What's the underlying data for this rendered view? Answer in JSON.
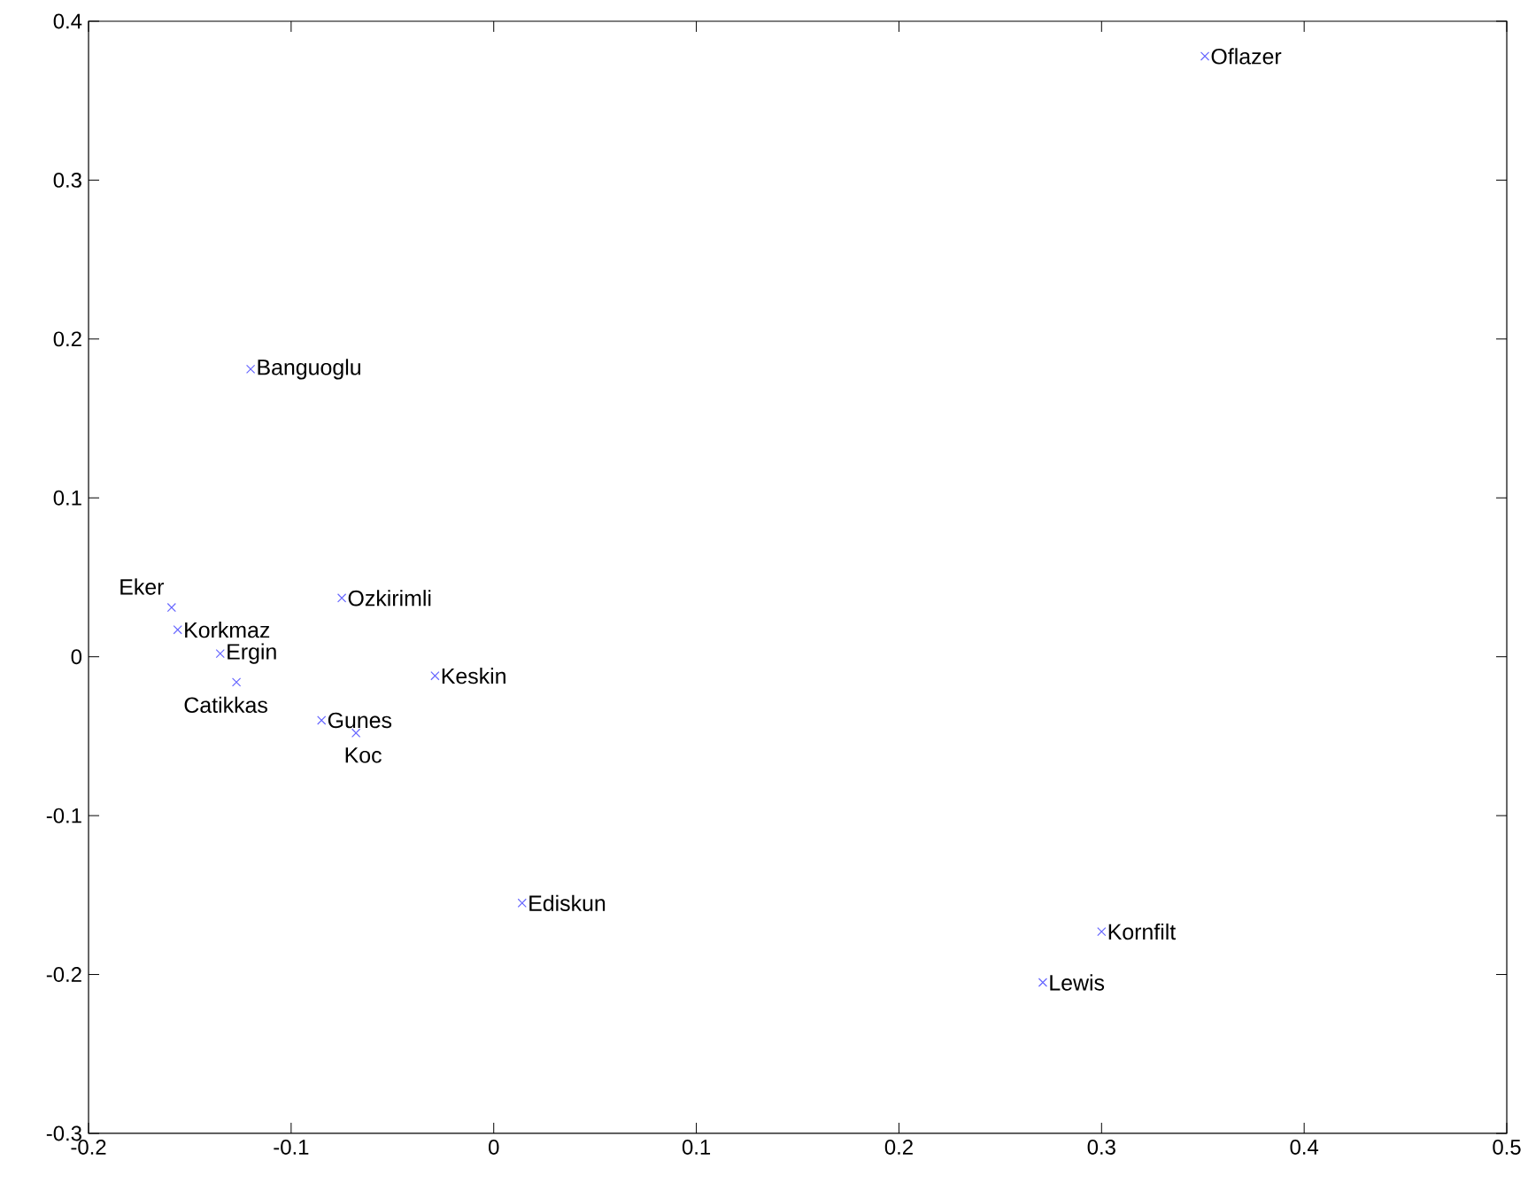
{
  "chart_data": {
    "type": "scatter",
    "marker": "cross",
    "grid": false,
    "x": [
      0.351,
      -0.12,
      -0.159,
      -0.156,
      -0.135,
      -0.127,
      -0.075,
      -0.029,
      -0.085,
      -0.068,
      0.014,
      0.3,
      0.271
    ],
    "series": [
      {
        "color": "#6666ff",
        "values": [
          0.378,
          0.181,
          0.031,
          0.017,
          0.002,
          -0.016,
          0.037,
          -0.012,
          -0.04,
          -0.048,
          -0.155,
          -0.173,
          -0.205
        ]
      }
    ],
    "xlim": [
      -0.2,
      0.5
    ],
    "xticks": [
      -0.2,
      -0.1,
      0,
      0.1,
      0.2,
      0.3,
      0.4,
      0.5
    ],
    "ylim": [
      -0.3,
      0.4
    ],
    "yticks": [
      -0.3,
      -0.2,
      -0.1,
      0,
      0.1,
      0.2,
      0.3,
      0.4
    ],
    "annotations": [
      {
        "text": "Oflazer",
        "x": 0.351,
        "y": 0.378
      },
      {
        "text": "Banguoglu",
        "x": -0.12,
        "y": 0.181
      },
      {
        "text": "Eker",
        "x": -0.159,
        "y": 0.031
      },
      {
        "text": "Korkmaz",
        "x": -0.156,
        "y": 0.017
      },
      {
        "text": "Ergin",
        "x": -0.135,
        "y": 0.002
      },
      {
        "text": "Catikkas",
        "x": -0.127,
        "y": -0.016
      },
      {
        "text": "Ozkirimli",
        "x": -0.075,
        "y": 0.037
      },
      {
        "text": "Keskin",
        "x": -0.029,
        "y": -0.012
      },
      {
        "text": "Gunes",
        "x": -0.085,
        "y": -0.04
      },
      {
        "text": "Koc",
        "x": -0.068,
        "y": -0.048
      },
      {
        "text": "Ediskun",
        "x": 0.014,
        "y": -0.155
      },
      {
        "text": "Kornfilt",
        "x": 0.3,
        "y": -0.173
      },
      {
        "text": "Lewis",
        "x": 0.271,
        "y": -0.205
      }
    ]
  }
}
